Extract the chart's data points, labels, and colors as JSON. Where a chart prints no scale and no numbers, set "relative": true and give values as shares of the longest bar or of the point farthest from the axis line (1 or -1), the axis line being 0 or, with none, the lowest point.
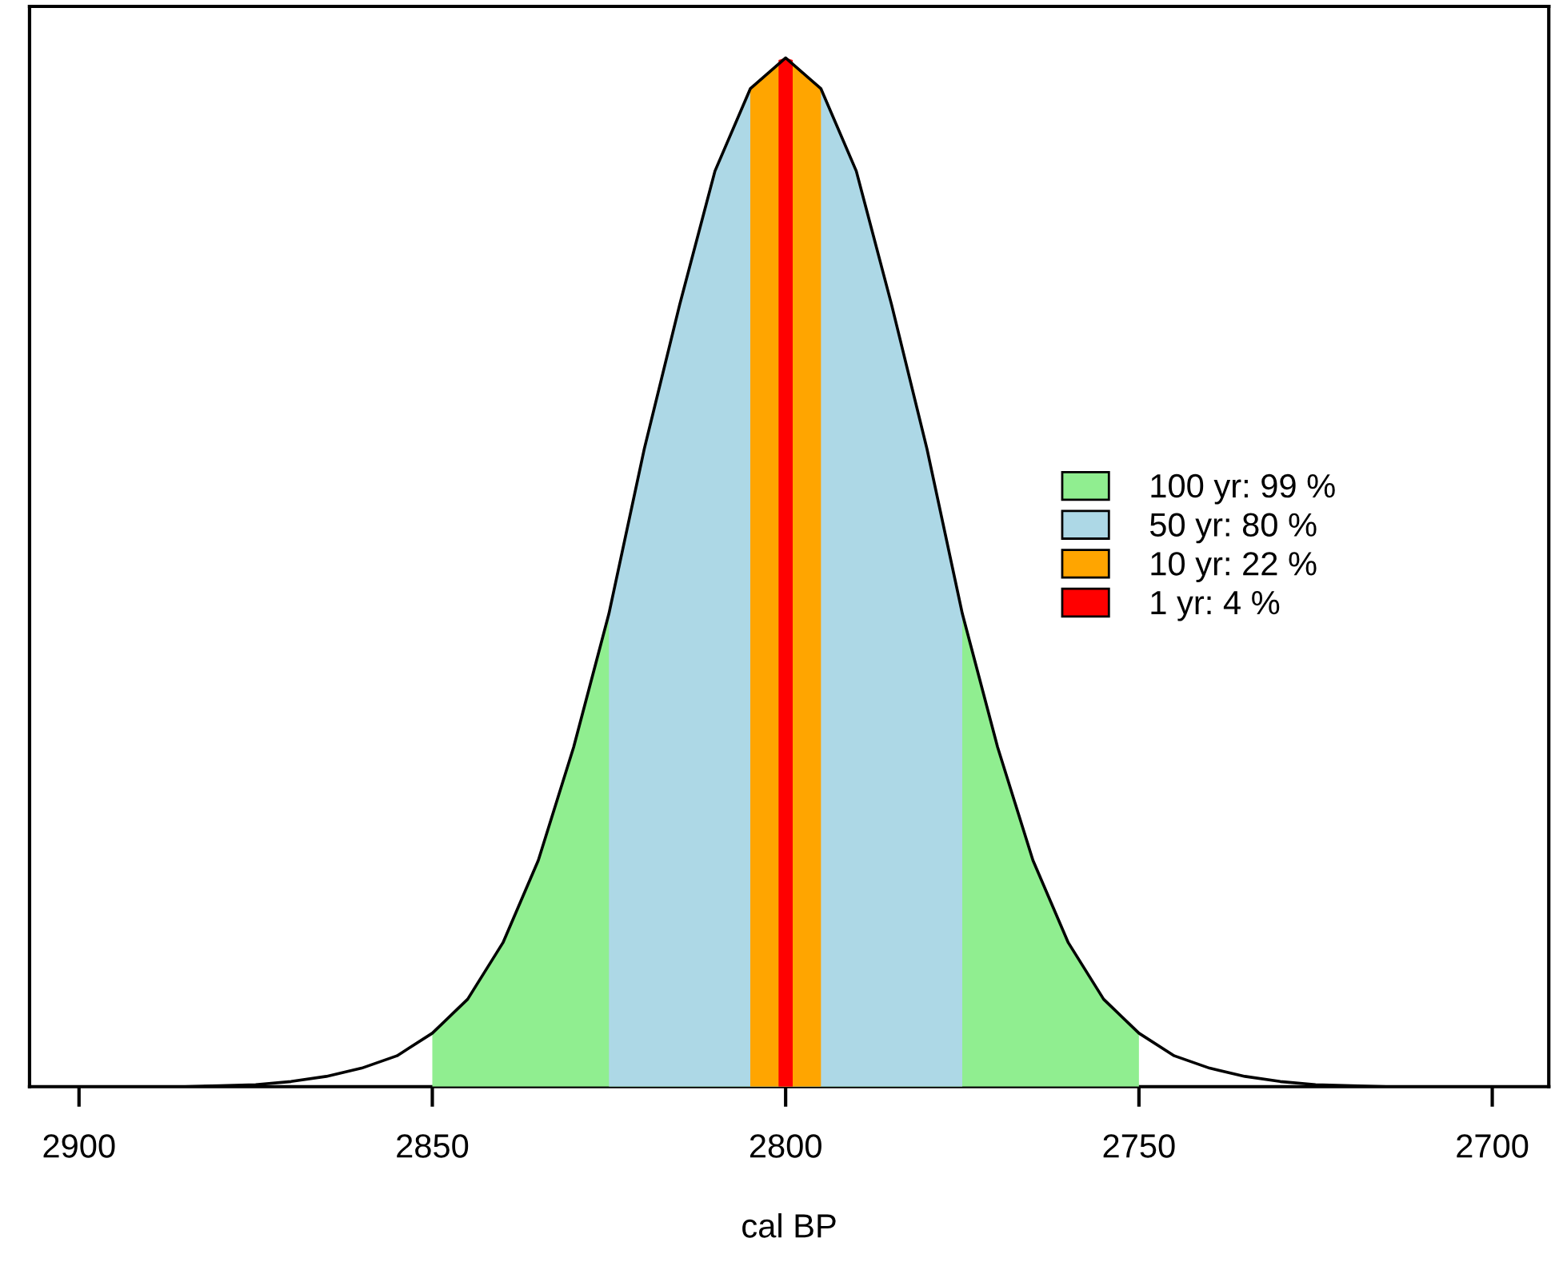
{
  "chart_data": {
    "type": "area",
    "relative": true,
    "xlabel": "cal BP",
    "xlim": [
      2907,
      2692
    ],
    "xticks": [
      2900,
      2850,
      2800,
      2750,
      2700
    ],
    "tick_labels": "x",
    "grid": false,
    "legend": "right",
    "series": [
      {
        "type": "line",
        "color": "#000000",
        "x": [
          2890,
          2885,
          2880,
          2875,
          2870,
          2865,
          2860,
          2855,
          2850,
          2845,
          2840,
          2835,
          2830,
          2825,
          2820,
          2815,
          2810,
          2805,
          2800,
          2795,
          2790,
          2785,
          2780,
          2775,
          2770,
          2765,
          2760,
          2755,
          2750,
          2745,
          2740,
          2735,
          2730,
          2725,
          2720,
          2715,
          2710
        ],
        "values": [
          0,
          0,
          0.001,
          0.002,
          0.005,
          0.01,
          0.018,
          0.03,
          0.052,
          0.085,
          0.14,
          0.22,
          0.33,
          0.46,
          0.62,
          0.76,
          0.89,
          0.97,
          1.0,
          0.97,
          0.89,
          0.76,
          0.62,
          0.46,
          0.33,
          0.22,
          0.14,
          0.085,
          0.052,
          0.03,
          0.018,
          0.01,
          0.005,
          0.002,
          0.001,
          0,
          0
        ]
      },
      {
        "name": "100 yr: 99 %",
        "color": "#90ee90",
        "x": [
          2850,
          2845,
          2840,
          2835,
          2830,
          2825,
          2820,
          2815,
          2810,
          2805,
          2800,
          2795,
          2790,
          2785,
          2780,
          2775,
          2770,
          2765,
          2760,
          2755,
          2750
        ],
        "values": [
          0.052,
          0.085,
          0.14,
          0.22,
          0.33,
          0.46,
          0.62,
          0.76,
          0.89,
          0.97,
          1.0,
          0.97,
          0.89,
          0.76,
          0.62,
          0.46,
          0.33,
          0.22,
          0.14,
          0.085,
          0.052
        ]
      },
      {
        "name": "50 yr: 80 %",
        "color": "#add8e6",
        "x": [
          2825,
          2820,
          2815,
          2810,
          2805,
          2800,
          2795,
          2790,
          2785,
          2780,
          2775
        ],
        "values": [
          0.46,
          0.62,
          0.76,
          0.89,
          0.97,
          1.0,
          0.97,
          0.89,
          0.76,
          0.62,
          0.46
        ]
      },
      {
        "name": "10 yr: 22 %",
        "color": "#ffa500",
        "x": [
          2805,
          2800,
          2795
        ],
        "values": [
          0.97,
          1.0,
          0.97
        ]
      },
      {
        "name": "1 yr: 4 %",
        "color": "#ff0000",
        "x": [
          2801,
          2800,
          2799
        ],
        "values": [
          0.998,
          1.0,
          0.998
        ]
      }
    ]
  }
}
